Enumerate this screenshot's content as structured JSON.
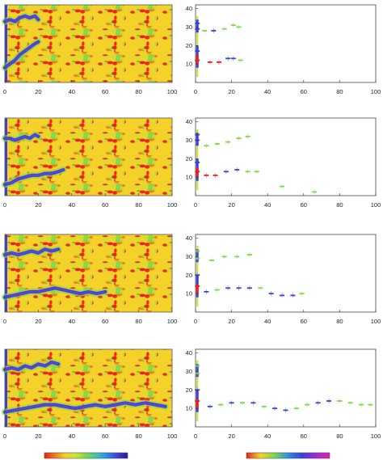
{
  "figure": {
    "left_panel_xticks": [
      "0",
      "20",
      "40",
      "60",
      "80",
      "100"
    ],
    "right_panel_xticks": [
      "0",
      "20",
      "40",
      "60",
      "80",
      "100"
    ],
    "right_panel_yticks": [
      "10",
      "20",
      "30",
      "40"
    ],
    "colormap_left": [
      "#e8201a",
      "#f07a1a",
      "#f4d22a",
      "#c9e23a",
      "#7fd84a",
      "#3fc3b0",
      "#2a8fe8",
      "#3a3fd8",
      "#2a1a9a"
    ],
    "colormap_right": [
      "#e8201a",
      "#f4d22a",
      "#7fd84a",
      "#2a8fe8",
      "#3a3fd8",
      "#a02ad8",
      "#e020b0"
    ],
    "colors": {
      "fracture_blue": "#3a3fd8",
      "fracture_purple": "#7a3ae0",
      "field_red": "#e8201a",
      "field_yellow": "#f4d22a",
      "field_green": "#7fd84a"
    }
  },
  "chart_data": [
    {
      "type": "heatmap",
      "panel": 1,
      "xlim": [
        0,
        100
      ],
      "ylim": [
        0,
        42
      ],
      "fracture_paths": [
        [
          [
            0,
            33
          ],
          [
            3,
            34
          ],
          [
            6,
            33
          ],
          [
            9,
            35
          ],
          [
            12,
            36
          ],
          [
            15,
            35
          ],
          [
            18,
            36
          ],
          [
            20,
            34
          ]
        ],
        [
          [
            0,
            8
          ],
          [
            3,
            10
          ],
          [
            6,
            12
          ],
          [
            9,
            15
          ],
          [
            12,
            17
          ],
          [
            15,
            19
          ],
          [
            18,
            21
          ],
          [
            20,
            22
          ]
        ]
      ]
    },
    {
      "type": "scatter",
      "panel": 1,
      "xlim": [
        0,
        100
      ],
      "ylim": [
        0,
        42
      ],
      "points": [
        {
          "x": 1,
          "y": 32,
          "c": "blue"
        },
        {
          "x": 1,
          "y": 29,
          "c": "blue"
        },
        {
          "x": 5,
          "y": 28,
          "c": "green"
        },
        {
          "x": 10,
          "y": 28,
          "c": "blue"
        },
        {
          "x": 16,
          "y": 29,
          "c": "green"
        },
        {
          "x": 21,
          "y": 31,
          "c": "green"
        },
        {
          "x": 24,
          "y": 30,
          "c": "green"
        },
        {
          "x": 1,
          "y": 17,
          "c": "blue"
        },
        {
          "x": 1,
          "y": 12,
          "c": "red"
        },
        {
          "x": 8,
          "y": 11,
          "c": "red"
        },
        {
          "x": 13,
          "y": 11,
          "c": "red"
        },
        {
          "x": 18,
          "y": 13,
          "c": "blue"
        },
        {
          "x": 21,
          "y": 13,
          "c": "blue"
        },
        {
          "x": 25,
          "y": 12,
          "c": "green"
        }
      ]
    },
    {
      "type": "heatmap",
      "panel": 2,
      "xlim": [
        0,
        100
      ],
      "ylim": [
        0,
        42
      ],
      "fracture_paths": [
        [
          [
            0,
            31
          ],
          [
            3,
            31
          ],
          [
            6,
            30
          ],
          [
            9,
            31
          ],
          [
            12,
            32
          ],
          [
            15,
            31
          ],
          [
            18,
            33
          ],
          [
            20,
            32
          ]
        ],
        [
          [
            0,
            6
          ],
          [
            4,
            7
          ],
          [
            8,
            9
          ],
          [
            12,
            10
          ],
          [
            16,
            11
          ],
          [
            20,
            11
          ],
          [
            24,
            12
          ],
          [
            28,
            12
          ],
          [
            32,
            13
          ],
          [
            35,
            14
          ]
        ]
      ]
    },
    {
      "type": "scatter",
      "panel": 2,
      "xlim": [
        0,
        100
      ],
      "ylim": [
        0,
        42
      ],
      "points": [
        {
          "x": 1,
          "y": 33,
          "c": "blue"
        },
        {
          "x": 1,
          "y": 30,
          "c": "blue"
        },
        {
          "x": 6,
          "y": 27,
          "c": "green"
        },
        {
          "x": 12,
          "y": 28,
          "c": "green"
        },
        {
          "x": 18,
          "y": 29,
          "c": "green"
        },
        {
          "x": 24,
          "y": 31,
          "c": "green"
        },
        {
          "x": 29,
          "y": 32,
          "c": "green"
        },
        {
          "x": 1,
          "y": 18,
          "c": "blue"
        },
        {
          "x": 1,
          "y": 13,
          "c": "red"
        },
        {
          "x": 6,
          "y": 11,
          "c": "red"
        },
        {
          "x": 11,
          "y": 11,
          "c": "red"
        },
        {
          "x": 17,
          "y": 13,
          "c": "blue"
        },
        {
          "x": 23,
          "y": 14,
          "c": "blue"
        },
        {
          "x": 29,
          "y": 13,
          "c": "green"
        },
        {
          "x": 34,
          "y": 13,
          "c": "green"
        },
        {
          "x": 48,
          "y": 5,
          "c": "green"
        },
        {
          "x": 66,
          "y": 2,
          "c": "green"
        }
      ]
    },
    {
      "type": "heatmap",
      "panel": 3,
      "xlim": [
        0,
        100
      ],
      "ylim": [
        0,
        42
      ],
      "fracture_paths": [
        [
          [
            0,
            31
          ],
          [
            4,
            32
          ],
          [
            8,
            31
          ],
          [
            12,
            32
          ],
          [
            16,
            33
          ],
          [
            20,
            32
          ],
          [
            24,
            34
          ],
          [
            28,
            33
          ],
          [
            32,
            34
          ]
        ],
        [
          [
            0,
            8
          ],
          [
            5,
            9
          ],
          [
            10,
            10
          ],
          [
            15,
            11
          ],
          [
            20,
            11
          ],
          [
            25,
            12
          ],
          [
            30,
            13
          ],
          [
            35,
            12
          ],
          [
            40,
            11
          ],
          [
            45,
            10
          ],
          [
            50,
            11
          ],
          [
            55,
            10
          ],
          [
            60,
            11
          ]
        ]
      ]
    },
    {
      "type": "scatter",
      "panel": 3,
      "xlim": [
        0,
        100
      ],
      "ylim": [
        0,
        42
      ],
      "points": [
        {
          "x": 1,
          "y": 33,
          "c": "green"
        },
        {
          "x": 1,
          "y": 29,
          "c": "green"
        },
        {
          "x": 9,
          "y": 28,
          "c": "green"
        },
        {
          "x": 16,
          "y": 30,
          "c": "green"
        },
        {
          "x": 23,
          "y": 30,
          "c": "green"
        },
        {
          "x": 30,
          "y": 31,
          "c": "green"
        },
        {
          "x": 1,
          "y": 20,
          "c": "blue"
        },
        {
          "x": 1,
          "y": 14,
          "c": "red"
        },
        {
          "x": 6,
          "y": 11,
          "c": "blue"
        },
        {
          "x": 12,
          "y": 12,
          "c": "green"
        },
        {
          "x": 18,
          "y": 13,
          "c": "blue"
        },
        {
          "x": 24,
          "y": 13,
          "c": "blue"
        },
        {
          "x": 30,
          "y": 13,
          "c": "blue"
        },
        {
          "x": 36,
          "y": 13,
          "c": "green"
        },
        {
          "x": 42,
          "y": 10,
          "c": "blue"
        },
        {
          "x": 48,
          "y": 9,
          "c": "blue"
        },
        {
          "x": 54,
          "y": 9,
          "c": "blue"
        },
        {
          "x": 59,
          "y": 10,
          "c": "green"
        }
      ]
    },
    {
      "type": "heatmap",
      "panel": 4,
      "xlim": [
        0,
        100
      ],
      "ylim": [
        0,
        42
      ],
      "fracture_paths": [
        [
          [
            0,
            31
          ],
          [
            4,
            32
          ],
          [
            8,
            31
          ],
          [
            12,
            33
          ],
          [
            16,
            32
          ],
          [
            20,
            34
          ],
          [
            24,
            33
          ],
          [
            28,
            35
          ],
          [
            32,
            34
          ]
        ],
        [
          [
            0,
            8
          ],
          [
            6,
            9
          ],
          [
            12,
            10
          ],
          [
            18,
            11
          ],
          [
            24,
            12
          ],
          [
            30,
            12
          ],
          [
            36,
            11
          ],
          [
            42,
            10
          ],
          [
            48,
            11
          ],
          [
            54,
            12
          ],
          [
            60,
            11
          ],
          [
            66,
            12
          ],
          [
            72,
            13
          ],
          [
            78,
            12
          ],
          [
            84,
            13
          ],
          [
            90,
            12
          ],
          [
            96,
            11
          ]
        ]
      ]
    },
    {
      "type": "scatter",
      "panel": 4,
      "xlim": [
        0,
        100
      ],
      "ylim": [
        0,
        42
      ],
      "points": [
        {
          "x": 1,
          "y": 33,
          "c": "green"
        },
        {
          "x": 1,
          "y": 29,
          "c": "green"
        },
        {
          "x": 1,
          "y": 20,
          "c": "blue"
        },
        {
          "x": 1,
          "y": 14,
          "c": "red"
        },
        {
          "x": 8,
          "y": 11,
          "c": "blue"
        },
        {
          "x": 14,
          "y": 12,
          "c": "green"
        },
        {
          "x": 20,
          "y": 13,
          "c": "blue"
        },
        {
          "x": 26,
          "y": 13,
          "c": "green"
        },
        {
          "x": 32,
          "y": 13,
          "c": "blue"
        },
        {
          "x": 38,
          "y": 11,
          "c": "green"
        },
        {
          "x": 44,
          "y": 10,
          "c": "blue"
        },
        {
          "x": 50,
          "y": 9,
          "c": "blue"
        },
        {
          "x": 56,
          "y": 10,
          "c": "green"
        },
        {
          "x": 62,
          "y": 12,
          "c": "green"
        },
        {
          "x": 68,
          "y": 13,
          "c": "blue"
        },
        {
          "x": 74,
          "y": 14,
          "c": "blue"
        },
        {
          "x": 80,
          "y": 14,
          "c": "green"
        },
        {
          "x": 86,
          "y": 13,
          "c": "green"
        },
        {
          "x": 92,
          "y": 12,
          "c": "green"
        },
        {
          "x": 97,
          "y": 12,
          "c": "green"
        }
      ]
    }
  ]
}
